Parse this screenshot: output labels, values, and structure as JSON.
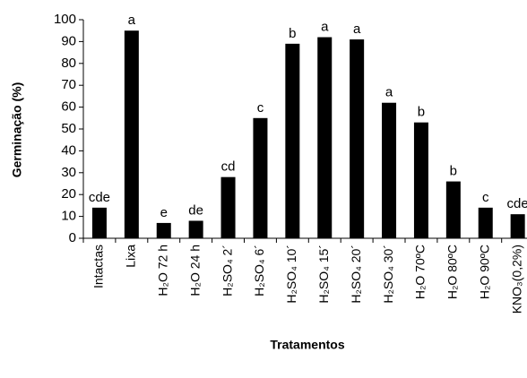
{
  "chart_data": {
    "type": "bar",
    "ylabel": "Germinação (%)",
    "xlabel": "Tratamentos",
    "categories": [
      "Intactas",
      "Lixa",
      "H₂O  72 h",
      "H₂O  24 h",
      "H₂SO₄  2´",
      "H₂SO₄  6´",
      "H₂SO₄ 10´",
      "H₂SO₄ 15´",
      "H₂SO₄ 20´",
      "H₂SO₄  30´",
      "H₂O  70ºC",
      "H₂O  80ºC",
      "H₂O  90ºC",
      "KNO₃(0,2%)"
    ],
    "values": [
      14,
      95,
      7,
      8,
      28,
      55,
      89,
      92,
      91,
      62,
      53,
      26,
      14,
      11
    ],
    "annotations": [
      "cde",
      "a",
      "e",
      "de",
      "cd",
      "c",
      "b",
      "a",
      "a",
      "a",
      "b",
      "b",
      "c",
      "cde"
    ],
    "color": "#000000",
    "ylim": [
      0,
      100
    ],
    "yticks": [
      0,
      10,
      20,
      30,
      40,
      50,
      60,
      70,
      80,
      90,
      100
    ]
  }
}
